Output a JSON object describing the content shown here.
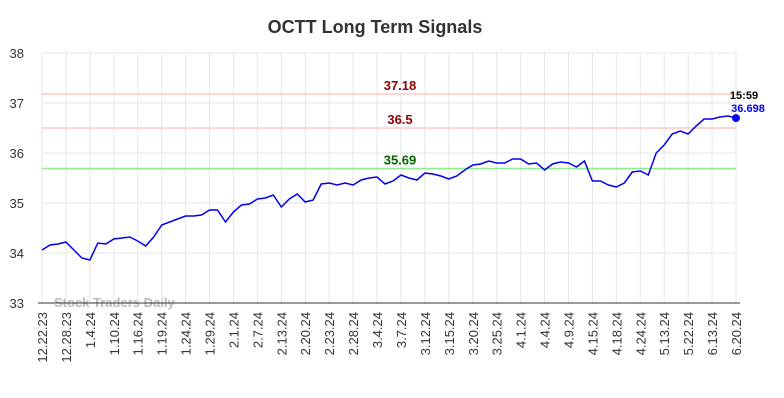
{
  "chart_data": {
    "type": "line",
    "title": "OCTT Long Term Signals",
    "categories": [
      "12.22.23",
      null,
      null,
      "12.28.23",
      null,
      null,
      "1.4.24",
      null,
      null,
      "1.10.24",
      null,
      null,
      "1.16.24",
      null,
      null,
      "1.19.24",
      null,
      null,
      "1.24.24",
      null,
      null,
      "1.29.24",
      null,
      null,
      "2.1.24",
      null,
      null,
      "2.7.24",
      null,
      null,
      "2.13.24",
      null,
      null,
      "2.20.24",
      null,
      null,
      "2.23.24",
      null,
      null,
      "2.28.24",
      null,
      null,
      "3.4.24",
      null,
      null,
      "3.7.24",
      null,
      null,
      "3.12.24",
      null,
      null,
      "3.15.24",
      null,
      null,
      "3.20.24",
      null,
      null,
      "3.25.24",
      null,
      null,
      "4.1.24",
      null,
      null,
      "4.4.24",
      null,
      null,
      "4.9.24",
      null,
      null,
      "4.15.24",
      null,
      null,
      "4.18.24",
      null,
      null,
      "4.24.24",
      null,
      null,
      "5.13.24",
      null,
      null,
      "5.22.24",
      null,
      null,
      "6.13.24",
      null,
      null,
      "6.20.24"
    ],
    "values": [
      34.06,
      34.16,
      34.18,
      34.22,
      34.06,
      33.9,
      33.86,
      34.2,
      34.18,
      34.28,
      34.3,
      34.32,
      34.24,
      34.14,
      34.32,
      34.56,
      34.62,
      34.68,
      34.74,
      34.74,
      34.76,
      34.86,
      34.86,
      34.62,
      34.82,
      34.96,
      34.98,
      35.08,
      35.1,
      35.16,
      34.92,
      35.08,
      35.18,
      35.02,
      35.06,
      35.38,
      35.4,
      35.36,
      35.4,
      35.36,
      35.46,
      35.5,
      35.52,
      35.38,
      35.44,
      35.56,
      35.5,
      35.46,
      35.6,
      35.58,
      35.54,
      35.48,
      35.54,
      35.66,
      35.76,
      35.78,
      35.84,
      35.8,
      35.8,
      35.88,
      35.88,
      35.78,
      35.8,
      35.66,
      35.78,
      35.82,
      35.8,
      35.72,
      35.84,
      35.44,
      35.44,
      35.36,
      35.32,
      35.4,
      35.62,
      35.64,
      35.56,
      36.0,
      36.16,
      36.38,
      36.44,
      36.38,
      36.54,
      36.68,
      36.68,
      36.72,
      36.74,
      36.698
    ],
    "color": "#0000ee",
    "ylim": [
      33,
      38
    ],
    "yticks": [
      33,
      34,
      35,
      36,
      37,
      38
    ],
    "grid": true,
    "hlines": [
      {
        "value": 37.18,
        "line_color": "#ffc8c8",
        "text_color": "#8b0000"
      },
      {
        "value": 36.5,
        "line_color": "#ffc8c8",
        "text_color": "#8b0000"
      },
      {
        "value": 35.69,
        "line_color": "#90ee90",
        "text_color": "#006400"
      }
    ],
    "last_label": "15:59",
    "watermark": "Stock Traders Daily"
  }
}
